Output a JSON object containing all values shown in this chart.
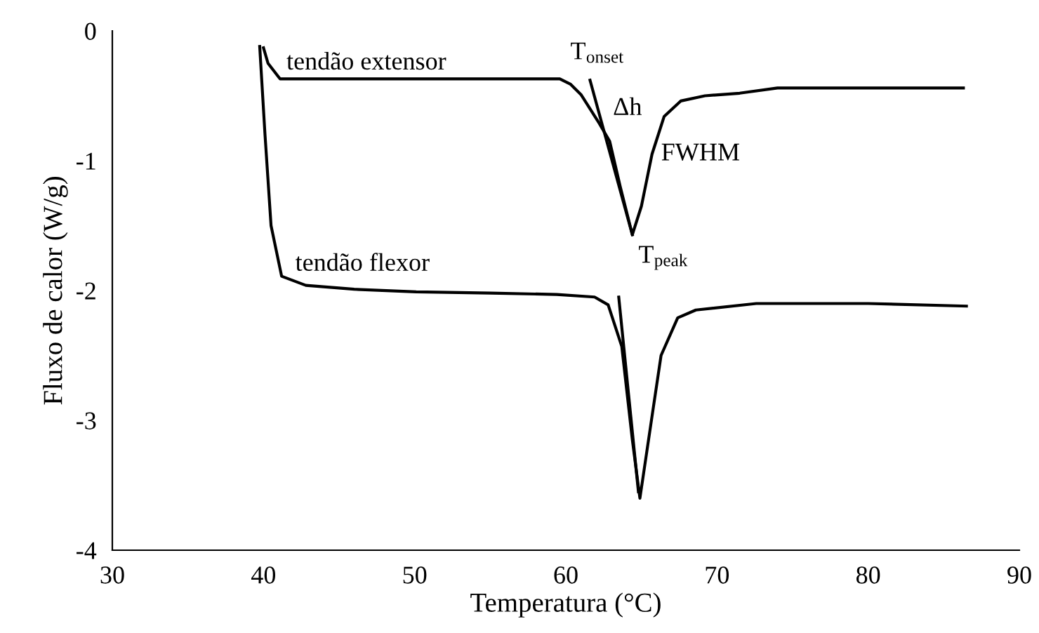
{
  "chart_data": {
    "type": "line",
    "xlabel": "Temperatura (°C)",
    "ylabel": "Fluxo de calor (W/g)",
    "xlim": [
      30,
      90
    ],
    "xticks": [
      30,
      40,
      50,
      60,
      70,
      80,
      90
    ],
    "ylim": [
      -4,
      0
    ],
    "yticks": [
      -4,
      -3,
      -2,
      -1,
      0
    ],
    "grid": false,
    "marker": "none",
    "line_style": "solid",
    "series": [
      {
        "color": "#000000",
        "x": [
          40.0,
          40.3,
          41.1,
          45,
          50,
          55,
          59.6,
          60.3,
          61.0,
          62.2,
          62.9,
          63.6,
          64.4,
          65.0,
          65.7,
          66.5,
          67.6,
          69.2,
          71.5,
          74.0,
          80,
          86.3
        ],
        "values": [
          -0.13,
          -0.25,
          -0.37,
          -0.37,
          -0.37,
          -0.37,
          -0.37,
          -0.41,
          -0.49,
          -0.71,
          -0.85,
          -1.2,
          -1.57,
          -1.35,
          -0.95,
          -0.66,
          -0.54,
          -0.5,
          -0.48,
          -0.44,
          -0.44,
          -0.44
        ]
      },
      {
        "color": "#000000",
        "x": [
          39.75,
          40.1,
          40.5,
          41.2,
          42.8,
          46,
          50.1,
          55,
          59.4,
          61.9,
          62.8,
          63.7,
          64.4,
          64.9,
          65.7,
          66.3,
          67.4,
          68.6,
          72.6,
          80,
          86.5
        ],
        "values": [
          -0.12,
          -0.8,
          -1.5,
          -1.89,
          -1.96,
          -1.99,
          -2.01,
          -2.02,
          -2.03,
          -2.05,
          -2.11,
          -2.43,
          -3.15,
          -3.6,
          -2.97,
          -2.5,
          -2.21,
          -2.15,
          -2.1,
          -2.1,
          -2.12
        ]
      },
      {
        "color": "#000000",
        "x": [
          61.6,
          64.4
        ],
        "values": [
          -0.38,
          -1.57
        ]
      },
      {
        "color": "#000000",
        "x": [
          63.5,
          64.8
        ],
        "values": [
          -2.05,
          -3.55
        ]
      }
    ],
    "annotations": [
      "tendão extensor",
      "T$_{onset}$",
      "Δh",
      "FWHM",
      "T$_{peak}$",
      "tendão flexor"
    ]
  }
}
